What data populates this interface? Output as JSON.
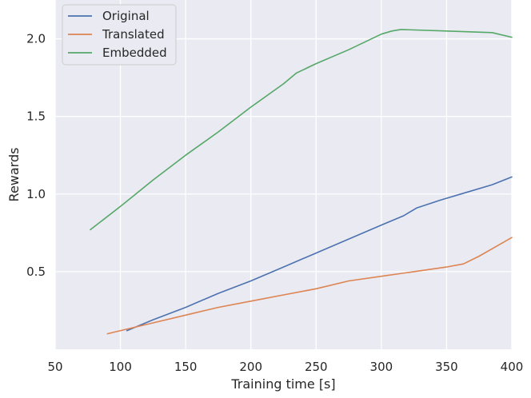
{
  "chart_data": {
    "type": "line",
    "xlabel": "Training time [s]",
    "ylabel": "Rewards",
    "xlim": [
      50,
      400
    ],
    "ylim": [
      0.0,
      2.25
    ],
    "xticks": [
      50,
      100,
      150,
      200,
      250,
      300,
      350,
      400
    ],
    "yticks": [
      0.5,
      1.0,
      1.5,
      2.0
    ],
    "xtick_labels": [
      "50",
      "100",
      "150",
      "200",
      "250",
      "300",
      "350",
      "400"
    ],
    "ytick_labels": [
      "0.5",
      "1.0",
      "1.5",
      "2.0"
    ],
    "grid": true,
    "legend_position": "top-left",
    "series": [
      {
        "name": "Original",
        "color": "#4c72b0",
        "x": [
          105,
          125,
          150,
          175,
          200,
          225,
          250,
          275,
          300,
          317,
          327,
          345,
          365,
          385,
          400
        ],
        "y": [
          0.12,
          0.19,
          0.27,
          0.36,
          0.44,
          0.53,
          0.62,
          0.71,
          0.8,
          0.86,
          0.91,
          0.96,
          1.01,
          1.06,
          1.11
        ]
      },
      {
        "name": "Translated",
        "color": "#dd8452",
        "x": [
          90,
          125,
          150,
          175,
          200,
          225,
          250,
          275,
          300,
          325,
          350,
          363,
          375,
          400
        ],
        "y": [
          0.1,
          0.17,
          0.22,
          0.27,
          0.31,
          0.35,
          0.39,
          0.44,
          0.47,
          0.5,
          0.53,
          0.55,
          0.6,
          0.72
        ]
      },
      {
        "name": "Embedded",
        "color": "#55a868",
        "x": [
          77,
          100,
          125,
          150,
          175,
          200,
          225,
          235,
          250,
          275,
          300,
          308,
          315,
          350,
          385,
          400
        ],
        "y": [
          0.77,
          0.92,
          1.09,
          1.25,
          1.4,
          1.56,
          1.71,
          1.78,
          1.84,
          1.93,
          2.03,
          2.05,
          2.06,
          2.05,
          2.04,
          2.01
        ]
      }
    ]
  }
}
